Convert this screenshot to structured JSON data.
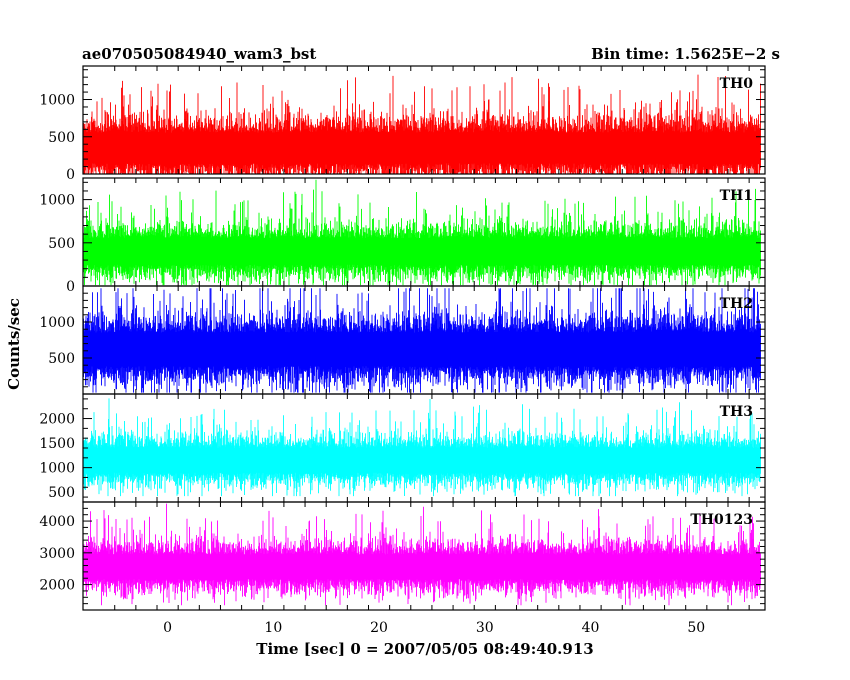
{
  "header": {
    "left": "ae070505084940_wam3_bst",
    "right": "Bin time: 1.5625E−2 s"
  },
  "chart_data": {
    "type": "line",
    "title": "ae070505084940_wam3_bst",
    "xlabel": "Time [sec] 0 = 2007/05/05 08:49:40.913",
    "ylabel": "Counts/sec",
    "xlim": [
      -8,
      56.5
    ],
    "xticks": [
      0,
      10,
      20,
      30,
      40,
      50
    ],
    "x_data_range": [
      -8,
      56
    ],
    "bin_time_s": 0.015625,
    "grid": false,
    "panels": [
      {
        "name": "TH0",
        "color": "#ff0000",
        "ylim": [
          0,
          1450
        ],
        "yticks": [
          0,
          500,
          1000
        ],
        "baseline": 350,
        "spread": 230,
        "min": 5,
        "max": 1440
      },
      {
        "name": "TH1",
        "color": "#00ff00",
        "ylim": [
          0,
          1250
        ],
        "yticks": [
          0,
          500,
          1000
        ],
        "baseline": 400,
        "spread": 170,
        "min": 10,
        "max": 1230
      },
      {
        "name": "TH2",
        "color": "#0000ff",
        "ylim": [
          0,
          1500
        ],
        "yticks": [
          500,
          1000
        ],
        "baseline": 620,
        "spread": 260,
        "min": 20,
        "max": 1470
      },
      {
        "name": "TH3",
        "color": "#00ffff",
        "ylim": [
          300,
          2500
        ],
        "yticks": [
          500,
          1000,
          1500,
          2000
        ],
        "baseline": 1150,
        "spread": 280,
        "min": 420,
        "max": 2470
      },
      {
        "name": "TH0123",
        "color": "#ff00ff",
        "ylim": [
          1200,
          4600
        ],
        "yticks": [
          2000,
          3000,
          4000
        ],
        "baseline": 2560,
        "spread": 430,
        "min": 1350,
        "max": 4550
      }
    ]
  }
}
